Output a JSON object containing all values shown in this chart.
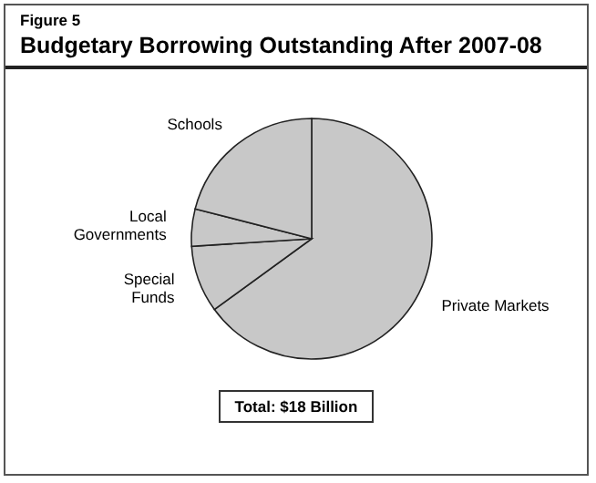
{
  "chart_data": {
    "type": "pie",
    "title": "Budgetary Borrowing Outstanding After 2007-08",
    "subtitle": "Figure 5",
    "categories": [
      "Private Markets",
      "Special Funds",
      "Local Governments",
      "Schools"
    ],
    "values": [
      65,
      9,
      5,
      21
    ],
    "colors": [
      "#c8c8c8",
      "#c8c8c8",
      "#c8c8c8",
      "#c8c8c8"
    ],
    "annotations": [
      "Total: $18 Billion"
    ],
    "legend": false
  }
}
